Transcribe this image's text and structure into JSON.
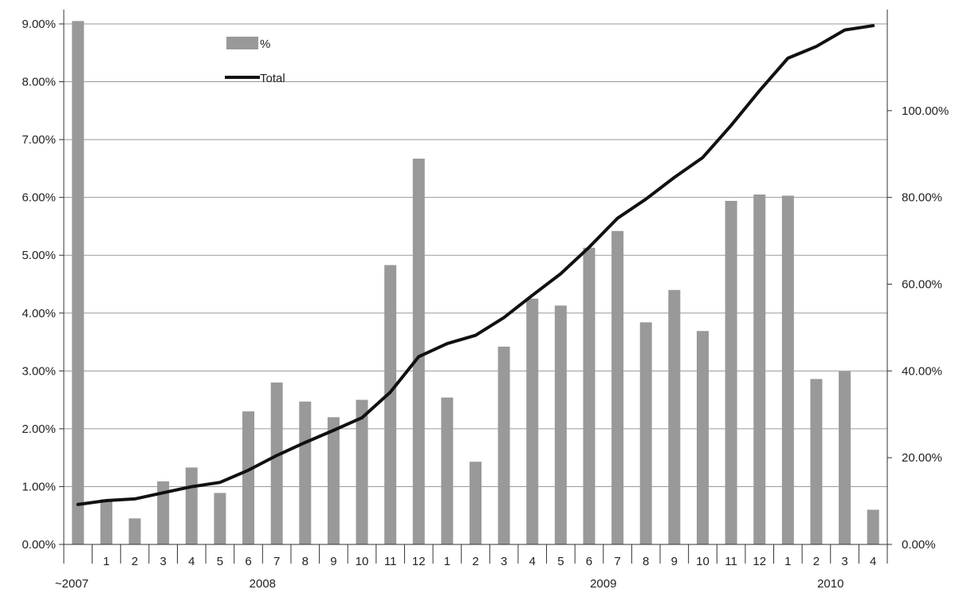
{
  "chart_data": {
    "type": "bar",
    "title": "",
    "categories": [
      "",
      "1",
      "2",
      "3",
      "4",
      "5",
      "6",
      "7",
      "8",
      "9",
      "10",
      "11",
      "12",
      "1",
      "2",
      "3",
      "4",
      "5",
      "6",
      "7",
      "8",
      "9",
      "10",
      "11",
      "12",
      "1",
      "2",
      "3",
      "4"
    ],
    "group_labels": [
      {
        "label": "~2007",
        "start": 0,
        "end": 0
      },
      {
        "label": "2008",
        "start": 1,
        "end": 12
      },
      {
        "label": "2009",
        "start": 13,
        "end": 24
      },
      {
        "label": "2010",
        "start": 25,
        "end": 28
      }
    ],
    "series": [
      {
        "name": "%",
        "type": "bar",
        "axis": "left",
        "color": "#999999",
        "values": [
          9.05,
          0.78,
          0.45,
          1.09,
          1.33,
          0.89,
          2.3,
          2.8,
          2.47,
          2.2,
          2.5,
          4.83,
          6.67,
          2.54,
          1.43,
          3.42,
          4.25,
          4.13,
          5.13,
          5.42,
          3.84,
          4.4,
          3.69,
          5.94,
          6.05,
          6.03,
          2.86,
          2.99,
          0.6
        ]
      },
      {
        "name": "Total",
        "type": "line",
        "axis": "right",
        "color": "#111111",
        "values": [
          9.2,
          10.1,
          10.5,
          11.9,
          13.3,
          14.3,
          17.1,
          20.5,
          23.5,
          26.3,
          29.2,
          35.1,
          43.3,
          46.3,
          48.2,
          52.3,
          57.4,
          62.4,
          68.5,
          75.2,
          79.6,
          84.6,
          89.2,
          96.6,
          104.6,
          112.1,
          114.8,
          118.6,
          119.6
        ]
      }
    ],
    "y_left": {
      "min": 0,
      "max": 9,
      "ticks": [
        "0.00%",
        "1.00%",
        "2.00%",
        "3.00%",
        "4.00%",
        "5.00%",
        "6.00%",
        "7.00%",
        "8.00%",
        "9.00%"
      ]
    },
    "y_right": {
      "min": 0,
      "max": 120,
      "ticks": [
        "0.00%",
        "20.00%",
        "40.00%",
        "60.00%",
        "80.00%",
        "100.00%"
      ]
    },
    "grid": true,
    "legend": {
      "position": "top-left",
      "entries": [
        "%",
        "Total"
      ]
    }
  }
}
